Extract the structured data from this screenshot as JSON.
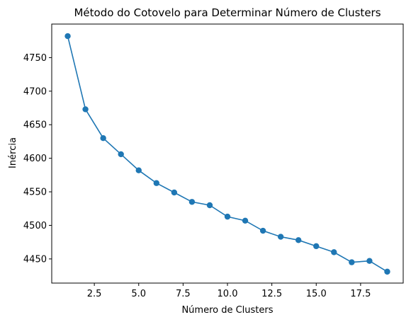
{
  "chart_data": {
    "type": "line",
    "title": "Método do Cotovelo para Determinar Número de Clusters",
    "xlabel": "Número de Clusters",
    "ylabel": "Inércia",
    "x": [
      1,
      2,
      3,
      4,
      5,
      6,
      7,
      8,
      9,
      10,
      11,
      12,
      13,
      14,
      15,
      16,
      17,
      18,
      19
    ],
    "series": [
      {
        "values": [
          4782,
          4673,
          4630,
          4606,
          4582,
          4563,
          4549,
          4535,
          4530,
          4513,
          4507,
          4492,
          4483,
          4478,
          4469,
          4460,
          4445,
          4447,
          4431
        ],
        "color": "#1f77b4",
        "marker": "circle"
      }
    ],
    "xlim": [
      0.1,
      19.9
    ],
    "ylim": [
      4414,
      4800
    ],
    "xticks": [
      2.5,
      5.0,
      7.5,
      10.0,
      12.5,
      15.0,
      17.5
    ],
    "xtick_labels": [
      "2.5",
      "5.0",
      "7.5",
      "10.0",
      "12.5",
      "15.0",
      "17.5"
    ],
    "yticks": [
      4450,
      4500,
      4550,
      4600,
      4650,
      4700,
      4750
    ],
    "ytick_labels": [
      "4450",
      "4500",
      "4550",
      "4600",
      "4650",
      "4700",
      "4750"
    ],
    "grid": false,
    "legend": "none"
  }
}
